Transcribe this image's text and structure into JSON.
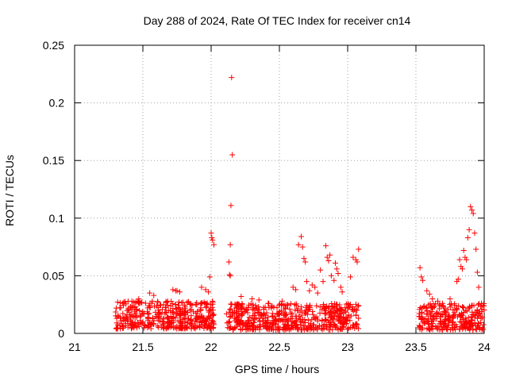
{
  "chart_data": {
    "type": "scatter",
    "title": "Day 288 of 2024, Rate Of TEC Index for receiver cn14",
    "xlabel": "GPS time / hours",
    "ylabel": "ROTI / TECUs",
    "xlim": [
      21,
      24
    ],
    "ylim": [
      0,
      0.25
    ],
    "xticks": [
      21,
      21.5,
      22,
      22.5,
      23,
      23.5,
      24
    ],
    "xtick_labels": [
      "21",
      "21.5",
      "22",
      "22.5",
      "23",
      "23.5",
      "24"
    ],
    "yticks": [
      0,
      0.05,
      0.1,
      0.15,
      0.2,
      0.25
    ],
    "ytick_labels": [
      "0",
      "0.05",
      "0.1",
      "0.15",
      "0.2",
      "0.25"
    ],
    "grid": true,
    "marker": "+",
    "color": "#ff0000",
    "series": [
      {
        "name": "ROTI",
        "points": [
          [
            22.15,
            0.222
          ],
          [
            22.155,
            0.155
          ],
          [
            22.145,
            0.111
          ],
          [
            22.14,
            0.077
          ],
          [
            22.13,
            0.062
          ],
          [
            22.135,
            0.051
          ],
          [
            22.14,
            0.05
          ],
          [
            21.99,
            0.049
          ],
          [
            22.0,
            0.087
          ],
          [
            22.005,
            0.083
          ],
          [
            22.01,
            0.081
          ],
          [
            22.02,
            0.077
          ],
          [
            21.93,
            0.04
          ],
          [
            21.96,
            0.038
          ],
          [
            21.98,
            0.036
          ],
          [
            21.72,
            0.038
          ],
          [
            21.74,
            0.037
          ],
          [
            21.75,
            0.037
          ],
          [
            21.77,
            0.036
          ],
          [
            21.55,
            0.035
          ],
          [
            21.58,
            0.033
          ],
          [
            21.47,
            0.03
          ],
          [
            21.36,
            0.027
          ],
          [
            21.42,
            0.028
          ],
          [
            22.22,
            0.032
          ],
          [
            22.3,
            0.03
          ],
          [
            22.35,
            0.029
          ],
          [
            22.52,
            0.028
          ],
          [
            22.6,
            0.04
          ],
          [
            22.62,
            0.038
          ],
          [
            22.64,
            0.077
          ],
          [
            22.66,
            0.084
          ],
          [
            22.67,
            0.075
          ],
          [
            22.68,
            0.065
          ],
          [
            22.69,
            0.062
          ],
          [
            22.7,
            0.045
          ],
          [
            22.72,
            0.037
          ],
          [
            22.74,
            0.042
          ],
          [
            22.76,
            0.04
          ],
          [
            22.78,
            0.035
          ],
          [
            22.8,
            0.055
          ],
          [
            22.82,
            0.045
          ],
          [
            22.84,
            0.076
          ],
          [
            22.85,
            0.066
          ],
          [
            22.86,
            0.063
          ],
          [
            22.87,
            0.068
          ],
          [
            22.88,
            0.05
          ],
          [
            22.9,
            0.046
          ],
          [
            22.91,
            0.061
          ],
          [
            22.92,
            0.056
          ],
          [
            22.93,
            0.052
          ],
          [
            22.95,
            0.04
          ],
          [
            22.96,
            0.036
          ],
          [
            23.02,
            0.049
          ],
          [
            23.04,
            0.066
          ],
          [
            23.06,
            0.064
          ],
          [
            23.07,
            0.062
          ],
          [
            23.08,
            0.073
          ],
          [
            23.53,
            0.057
          ],
          [
            23.54,
            0.049
          ],
          [
            23.55,
            0.046
          ],
          [
            23.58,
            0.037
          ],
          [
            23.6,
            0.034
          ],
          [
            23.62,
            0.03
          ],
          [
            23.66,
            0.028
          ],
          [
            23.75,
            0.03
          ],
          [
            23.8,
            0.045
          ],
          [
            23.81,
            0.047
          ],
          [
            23.82,
            0.064
          ],
          [
            23.83,
            0.058
          ],
          [
            23.84,
            0.056
          ],
          [
            23.85,
            0.072
          ],
          [
            23.86,
            0.066
          ],
          [
            23.87,
            0.064
          ],
          [
            23.88,
            0.083
          ],
          [
            23.89,
            0.09
          ],
          [
            23.9,
            0.11
          ],
          [
            23.91,
            0.107
          ],
          [
            23.92,
            0.104
          ],
          [
            23.93,
            0.087
          ],
          [
            23.94,
            0.073
          ],
          [
            23.95,
            0.053
          ],
          [
            23.96,
            0.04
          ],
          [
            23.98,
            0.026
          ]
        ]
      }
    ],
    "dense_band": {
      "description": "dense cluster of ROTI markers near the baseline",
      "segments": [
        {
          "x_start": 21.3,
          "x_end": 22.02,
          "y_min": 0.004,
          "y_max": 0.028
        },
        {
          "x_start": 22.11,
          "x_end": 23.08,
          "y_min": 0.003,
          "y_max": 0.026
        },
        {
          "x_start": 23.52,
          "x_end": 24.0,
          "y_min": 0.003,
          "y_max": 0.026
        }
      ],
      "points_per_segment": [
        420,
        560,
        280
      ]
    }
  }
}
